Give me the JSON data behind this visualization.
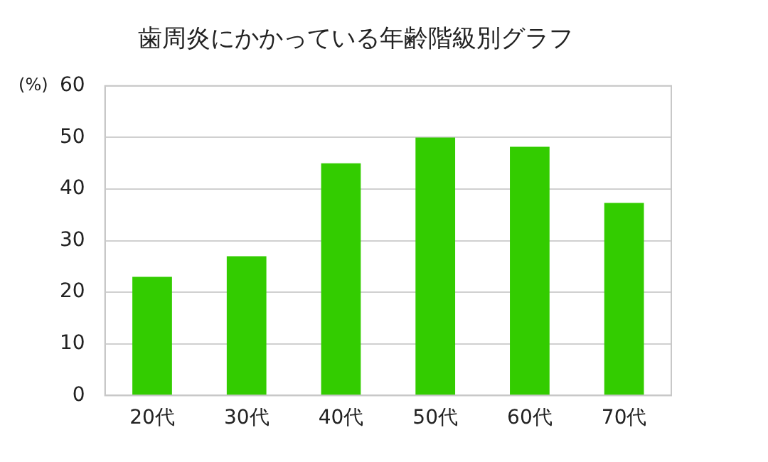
{
  "chart_data": {
    "type": "bar",
    "title": "歯周炎にかかっている年齢階級別グラフ",
    "ylabel": "(%)",
    "categories": [
      "20代",
      "30代",
      "40代",
      "50代",
      "60代",
      "70代"
    ],
    "values": [
      23,
      27,
      45,
      50,
      48.2,
      37.3
    ],
    "color": "#33cc00",
    "ylim": [
      0,
      60
    ],
    "yticks": [
      0,
      10,
      20,
      30,
      40,
      50,
      60
    ],
    "grid": "y"
  }
}
